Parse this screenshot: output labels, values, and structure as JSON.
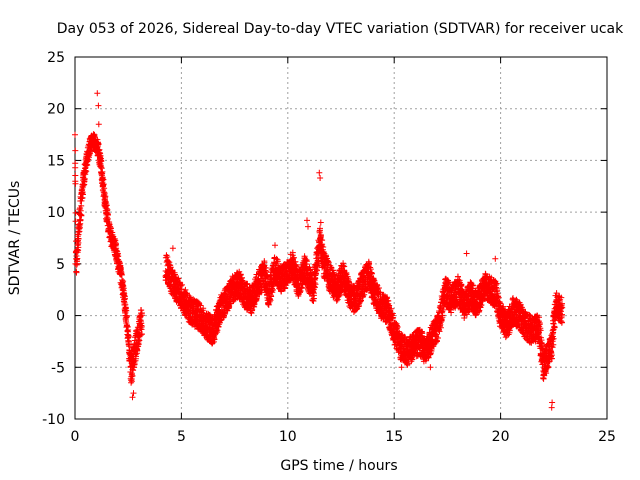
{
  "chart_data": {
    "type": "scatter",
    "title": "Day 053 of 2026, Sidereal Day-to-day VTEC variation (SDTVAR) for receiver ucak",
    "xlabel": "GPS time / hours",
    "ylabel": "SDTVAR / TECUs",
    "xlim": [
      0,
      25
    ],
    "ylim": [
      -10,
      25
    ],
    "xticks": [
      0,
      5,
      10,
      15,
      20,
      25
    ],
    "yticks": [
      -10,
      -5,
      0,
      5,
      10,
      15,
      20,
      25
    ],
    "grid": true,
    "marker": "+",
    "series_color": "#ff0000",
    "profile": [
      [
        0.0,
        18.0
      ],
      [
        0.05,
        5.2
      ],
      [
        0.1,
        6.0
      ],
      [
        0.2,
        9.0
      ],
      [
        0.3,
        11.0
      ],
      [
        0.4,
        13.0
      ],
      [
        0.55,
        15.0
      ],
      [
        0.7,
        16.5
      ],
      [
        0.85,
        17.0
      ],
      [
        1.0,
        16.5
      ],
      [
        1.1,
        16.0
      ],
      [
        1.25,
        14.0
      ],
      [
        1.4,
        11.0
      ],
      [
        1.55,
        9.0
      ],
      [
        1.7,
        7.5
      ],
      [
        1.9,
        6.5
      ],
      [
        2.1,
        4.5
      ],
      [
        2.3,
        2.0
      ],
      [
        2.45,
        -1.0
      ],
      [
        2.55,
        -3.5
      ],
      [
        2.65,
        -5.5
      ],
      [
        2.75,
        -4.0
      ],
      [
        2.85,
        -3.0
      ],
      [
        3.05,
        -1.0
      ],
      [
        4.3,
        4.8
      ],
      [
        4.5,
        3.5
      ],
      [
        4.8,
        2.5
      ],
      [
        5.1,
        1.5
      ],
      [
        5.4,
        0.5
      ],
      [
        5.8,
        0.0
      ],
      [
        6.2,
        -1.0
      ],
      [
        6.5,
        -1.5
      ],
      [
        6.8,
        0.5
      ],
      [
        7.1,
        1.5
      ],
      [
        7.4,
        2.5
      ],
      [
        7.7,
        3.0
      ],
      [
        8.0,
        2.0
      ],
      [
        8.3,
        1.5
      ],
      [
        8.6,
        3.0
      ],
      [
        8.9,
        4.0
      ],
      [
        9.1,
        2.0
      ],
      [
        9.4,
        4.5
      ],
      [
        9.7,
        3.5
      ],
      [
        10.0,
        4.0
      ],
      [
        10.2,
        5.0
      ],
      [
        10.5,
        3.0
      ],
      [
        10.8,
        4.5
      ],
      [
        11.2,
        2.5
      ],
      [
        11.5,
        7.2
      ],
      [
        11.7,
        5.0
      ],
      [
        12.0,
        3.5
      ],
      [
        12.3,
        2.5
      ],
      [
        12.6,
        4.0
      ],
      [
        12.9,
        2.0
      ],
      [
        13.2,
        1.5
      ],
      [
        13.5,
        3.0
      ],
      [
        13.8,
        4.0
      ],
      [
        14.1,
        2.0
      ],
      [
        14.4,
        1.0
      ],
      [
        14.7,
        0.5
      ],
      [
        15.0,
        -1.5
      ],
      [
        15.3,
        -3.0
      ],
      [
        15.6,
        -3.5
      ],
      [
        15.9,
        -3.0
      ],
      [
        16.2,
        -2.5
      ],
      [
        16.5,
        -3.5
      ],
      [
        16.8,
        -2.0
      ],
      [
        17.1,
        -1.0
      ],
      [
        17.4,
        2.5
      ],
      [
        17.7,
        1.5
      ],
      [
        18.0,
        2.5
      ],
      [
        18.3,
        1.0
      ],
      [
        18.6,
        2.0
      ],
      [
        18.9,
        1.0
      ],
      [
        19.2,
        3.0
      ],
      [
        19.5,
        2.5
      ],
      [
        19.8,
        2.0
      ],
      [
        20.0,
        0.0
      ],
      [
        20.3,
        -1.0
      ],
      [
        20.6,
        0.5
      ],
      [
        20.9,
        0.0
      ],
      [
        21.2,
        -1.0
      ],
      [
        21.5,
        -1.5
      ],
      [
        21.8,
        -1.0
      ],
      [
        22.0,
        -5.0
      ],
      [
        22.2,
        -4.0
      ],
      [
        22.4,
        -3.0
      ],
      [
        22.6,
        1.0
      ],
      [
        22.9,
        0.5
      ]
    ],
    "gaps": [
      [
        3.15,
        4.25
      ]
    ],
    "outliers": [
      [
        1.05,
        21.5
      ],
      [
        1.1,
        20.3
      ],
      [
        1.12,
        18.5
      ],
      [
        11.48,
        13.8
      ],
      [
        11.52,
        13.3
      ],
      [
        11.55,
        9.0
      ],
      [
        11.5,
        8.0
      ],
      [
        2.7,
        -7.9
      ],
      [
        2.75,
        -7.5
      ],
      [
        22.4,
        -8.9
      ],
      [
        22.42,
        -8.4
      ],
      [
        0.02,
        5.0
      ],
      [
        0.05,
        6.2
      ],
      [
        10.9,
        9.2
      ],
      [
        10.95,
        8.6
      ],
      [
        18.4,
        6.0
      ],
      [
        19.75,
        5.5
      ],
      [
        9.4,
        6.8
      ],
      [
        4.6,
        6.5
      ],
      [
        15.35,
        -5.0
      ],
      [
        16.7,
        -5.0
      ]
    ]
  }
}
